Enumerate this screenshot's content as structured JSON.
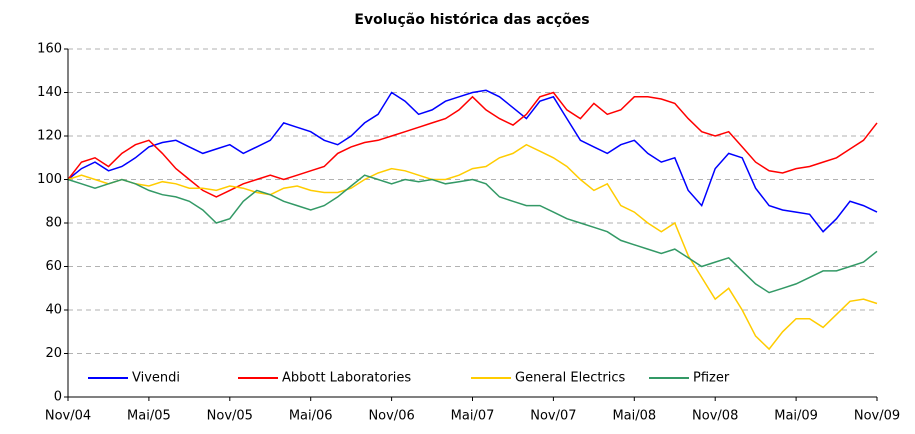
{
  "chart_data": {
    "type": "line",
    "title": "Evolução histórica das acções",
    "categories": [
      "Nov/04",
      null,
      null,
      null,
      null,
      null,
      "Mai/05",
      null,
      null,
      null,
      null,
      null,
      "Nov/05",
      null,
      null,
      null,
      null,
      null,
      "Mai/06",
      null,
      null,
      null,
      null,
      null,
      "Nov/06",
      null,
      null,
      null,
      null,
      null,
      "Mai/07",
      null,
      null,
      null,
      null,
      null,
      "Nov/07",
      null,
      null,
      null,
      null,
      null,
      "Mai/08",
      null,
      null,
      null,
      null,
      null,
      "Nov/08",
      null,
      null,
      null,
      null,
      null,
      "Mai/09",
      null,
      null,
      null,
      null,
      null,
      "Nov/09"
    ],
    "series": [
      {
        "name": "Vivendi",
        "color": "#0000ff",
        "values": [
          100,
          105,
          108,
          104,
          106,
          110,
          115,
          117,
          118,
          115,
          112,
          114,
          116,
          112,
          115,
          118,
          126,
          124,
          122,
          118,
          116,
          120,
          126,
          130,
          140,
          136,
          130,
          132,
          136,
          138,
          140,
          141,
          138,
          133,
          128,
          136,
          138,
          128,
          118,
          115,
          112,
          116,
          118,
          112,
          108,
          110,
          95,
          88,
          105,
          112,
          110,
          96,
          88,
          86,
          85,
          84,
          76,
          82,
          90,
          88,
          85
        ]
      },
      {
        "name": "Abbott Laboratories",
        "color": "#ff0000",
        "values": [
          100,
          108,
          110,
          106,
          112,
          116,
          118,
          112,
          105,
          100,
          95,
          92,
          95,
          98,
          100,
          102,
          100,
          102,
          104,
          106,
          112,
          115,
          117,
          118,
          120,
          122,
          124,
          126,
          128,
          132,
          138,
          132,
          128,
          125,
          130,
          138,
          140,
          132,
          128,
          135,
          130,
          132,
          138,
          138,
          137,
          135,
          128,
          122,
          120,
          122,
          115,
          108,
          104,
          103,
          105,
          106,
          108,
          110,
          114,
          118,
          126
        ]
      },
      {
        "name": "General Electrics",
        "color": "#ffcc00",
        "values": [
          100,
          102,
          100,
          98,
          100,
          98,
          97,
          99,
          98,
          96,
          96,
          95,
          97,
          96,
          94,
          93,
          96,
          97,
          95,
          94,
          94,
          96,
          100,
          103,
          105,
          104,
          102,
          100,
          100,
          102,
          105,
          106,
          110,
          112,
          116,
          113,
          110,
          106,
          100,
          95,
          98,
          88,
          85,
          80,
          76,
          80,
          65,
          55,
          45,
          50,
          40,
          28,
          22,
          30,
          36,
          36,
          32,
          38,
          44,
          45,
          43
        ]
      },
      {
        "name": "Pfizer",
        "color": "#339966",
        "values": [
          100,
          98,
          96,
          98,
          100,
          98,
          95,
          93,
          92,
          90,
          86,
          80,
          82,
          90,
          95,
          93,
          90,
          88,
          86,
          88,
          92,
          97,
          102,
          100,
          98,
          100,
          99,
          100,
          98,
          99,
          100,
          98,
          92,
          90,
          88,
          88,
          85,
          82,
          80,
          78,
          76,
          72,
          70,
          68,
          66,
          68,
          64,
          60,
          62,
          64,
          58,
          52,
          48,
          50,
          52,
          55,
          58,
          58,
          60,
          62,
          67
        ]
      }
    ],
    "ylim": [
      0,
      160
    ],
    "yticks": [
      0,
      20,
      40,
      60,
      80,
      100,
      120,
      140,
      160
    ],
    "grid": true,
    "legend": "bottom"
  }
}
